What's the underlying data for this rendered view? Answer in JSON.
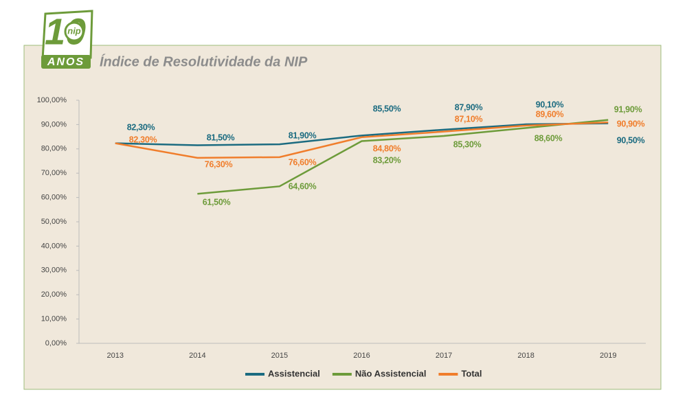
{
  "logo": {
    "number": "10",
    "brand": "nip",
    "caption": "ANOS"
  },
  "chart_data": {
    "type": "line",
    "title": "Índice de Resolutividade da NIP",
    "categories": [
      "2013",
      "2014",
      "2015",
      "2016",
      "2017",
      "2018",
      "2019"
    ],
    "series": [
      {
        "name": "Assistencial",
        "color": "#1b6b80",
        "values": [
          82.3,
          81.5,
          81.9,
          85.5,
          87.9,
          90.1,
          90.5
        ],
        "value_labels": [
          "82,30%",
          "81,50%",
          "81,90%",
          "85,50%",
          "87,90%",
          "90,10%",
          "90,50%"
        ]
      },
      {
        "name": "Não Assistencial",
        "color": "#6d9b3a",
        "values": [
          null,
          61.5,
          64.6,
          83.2,
          85.3,
          88.6,
          91.9
        ],
        "value_labels": [
          null,
          "61,50%",
          "64,60%",
          "83,20%",
          "85,30%",
          "88,60%",
          "91,90%"
        ]
      },
      {
        "name": "Total",
        "color": "#f07d2b",
        "values": [
          82.3,
          76.3,
          76.6,
          84.8,
          87.1,
          89.6,
          90.9
        ],
        "value_labels": [
          "82,30%",
          "76,30%",
          "76,60%",
          "84,80%",
          "87,10%",
          "89,60%",
          "90,90%"
        ]
      }
    ],
    "ylim": [
      0,
      100
    ],
    "yticks": [
      {
        "value": 0,
        "label": "0,00%"
      },
      {
        "value": 10,
        "label": "10,00%"
      },
      {
        "value": 20,
        "label": "20,00%"
      },
      {
        "value": 30,
        "label": "30,00%"
      },
      {
        "value": 40,
        "label": "40,00%"
      },
      {
        "value": 50,
        "label": "50,00%"
      },
      {
        "value": 60,
        "label": "60,00%"
      },
      {
        "value": 70,
        "label": "70,00%"
      },
      {
        "value": 80,
        "label": "80,00%"
      },
      {
        "value": 90,
        "label": "90,00%"
      },
      {
        "value": 100,
        "label": "100,00%"
      }
    ],
    "legend": "bottom"
  }
}
